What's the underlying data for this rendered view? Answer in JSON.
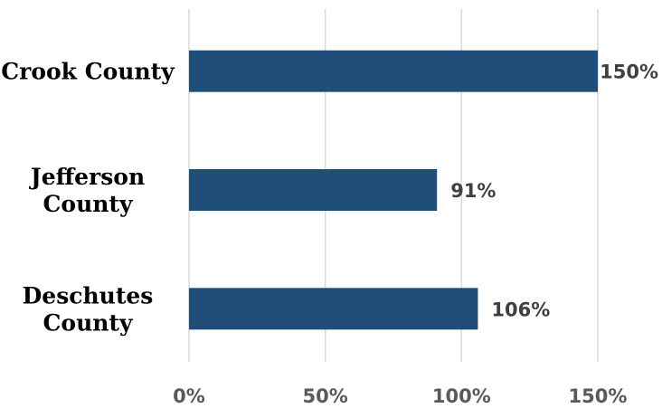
{
  "chart_data": {
    "type": "bar",
    "orientation": "horizontal",
    "categories": [
      [
        "Crook County"
      ],
      [
        "Jefferson",
        "County"
      ],
      [
        "Deschutes",
        "County"
      ]
    ],
    "values": [
      150,
      91,
      106
    ],
    "value_labels": [
      "150%",
      "91%",
      "106%"
    ],
    "xlim": [
      0,
      150
    ],
    "xticks": [
      0,
      50,
      100,
      150
    ],
    "xtick_labels": [
      "0%",
      "50%",
      "100%",
      "150%"
    ],
    "grid": "vertical",
    "legend": "none",
    "bar_color": "#1f4e79"
  }
}
